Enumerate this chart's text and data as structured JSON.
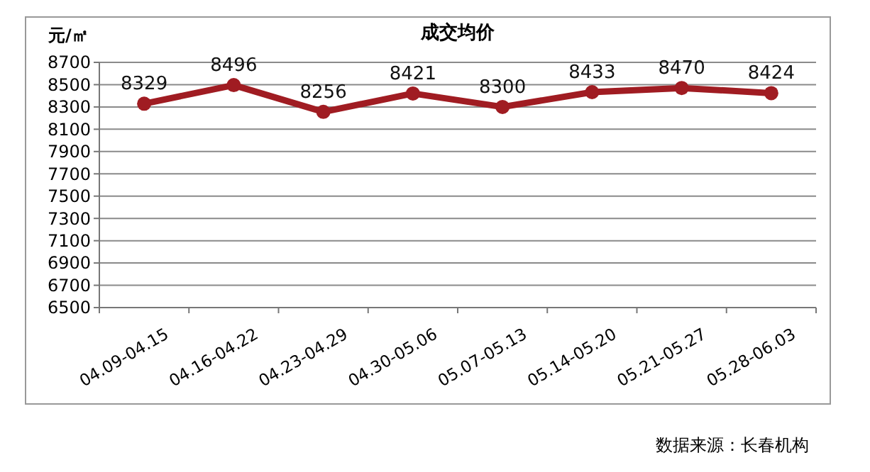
{
  "chart_data": {
    "type": "line",
    "title": "成交均价",
    "ylabel": "元/㎡",
    "categories": [
      "04.09-04.15",
      "04.16-04.22",
      "04.23-04.29",
      "04.30-05.06",
      "05.07-05.13",
      "05.14-05.20",
      "05.21-05.27",
      "05.28-06.03"
    ],
    "series": [
      {
        "color": "#a01c22",
        "values": [
          8329,
          8496,
          8256,
          8421,
          8300,
          8433,
          8470,
          8424
        ]
      }
    ],
    "ylim": [
      6500,
      8700
    ],
    "yticks": [
      6500,
      6700,
      6900,
      7100,
      7300,
      7500,
      7700,
      7900,
      8100,
      8300,
      8500,
      8700
    ],
    "grid": "y",
    "marker": "circle",
    "line_style": "solid",
    "data_labels": true,
    "annotations": [
      "数据来源：长春机构"
    ]
  }
}
